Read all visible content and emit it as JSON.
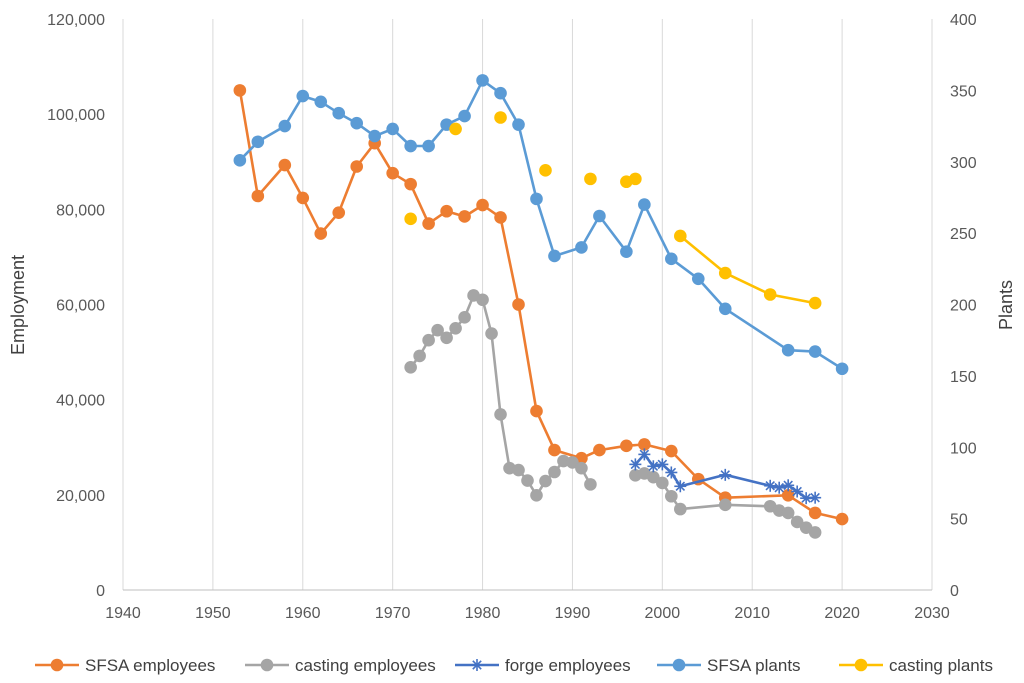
{
  "chart_data": {
    "type": "line",
    "xlabel": "",
    "ylabel": "Employment",
    "y2label": "Plants",
    "xlim": [
      1940,
      2030
    ],
    "ylim": [
      0,
      120000
    ],
    "y2lim": [
      0,
      400
    ],
    "x_ticks": [
      "1940",
      "1950",
      "1960",
      "1970",
      "1980",
      "1990",
      "2000",
      "2010",
      "2020",
      "2030"
    ],
    "y_ticks": [
      "0",
      "20,000",
      "40,000",
      "60,000",
      "80,000",
      "100,000",
      "120,000"
    ],
    "y2_ticks": [
      "0",
      "50",
      "100",
      "150",
      "200",
      "250",
      "300",
      "350",
      "400"
    ],
    "grid": "vertical",
    "legend_position": "bottom",
    "series": [
      {
        "name": "SFSA employees",
        "axis": "left",
        "color": "#ED7D31",
        "marker": "circle",
        "line": true,
        "points": [
          [
            1953,
            105000
          ],
          [
            1955,
            82800
          ],
          [
            1958,
            89300
          ],
          [
            1960,
            82400
          ],
          [
            1962,
            74900
          ],
          [
            1964,
            79300
          ],
          [
            1966,
            89000
          ],
          [
            1968,
            93900
          ],
          [
            1970,
            87600
          ],
          [
            1972,
            85300
          ],
          [
            1974,
            77000
          ],
          [
            1976,
            79600
          ],
          [
            1978,
            78500
          ],
          [
            1980,
            80900
          ],
          [
            1982,
            78300
          ],
          [
            1984,
            60000
          ],
          [
            1986,
            37600
          ],
          [
            1988,
            29400
          ],
          [
            1991,
            27700
          ],
          [
            1993,
            29400
          ],
          [
            1996,
            30300
          ],
          [
            1998,
            30600
          ],
          [
            2001,
            29200
          ],
          [
            2004,
            23300
          ],
          [
            2007,
            19400
          ],
          [
            2014,
            19900
          ],
          [
            2017,
            16200
          ],
          [
            2020,
            14900
          ]
        ]
      },
      {
        "name": "casting employees",
        "axis": "left",
        "color": "#A5A5A5",
        "marker": "circle",
        "line": true,
        "segments": [
          [
            [
              1972,
              46800
            ],
            [
              1973,
              49200
            ],
            [
              1974,
              52500
            ],
            [
              1975,
              54600
            ],
            [
              1976,
              53000
            ],
            [
              1977,
              55000
            ],
            [
              1978,
              57300
            ],
            [
              1979,
              61900
            ],
            [
              1980,
              61000
            ],
            [
              1981,
              53900
            ],
            [
              1982,
              36900
            ],
            [
              1983,
              25600
            ],
            [
              1984,
              25200
            ],
            [
              1985,
              23000
            ],
            [
              1986,
              19900
            ],
            [
              1987,
              22900
            ],
            [
              1988,
              24800
            ],
            [
              1989,
              27100
            ],
            [
              1990,
              26800
            ],
            [
              1991,
              25600
            ],
            [
              1992,
              22200
            ]
          ],
          [
            [
              1997,
              24100
            ],
            [
              1998,
              24500
            ],
            [
              1999,
              23700
            ],
            [
              2000,
              22500
            ],
            [
              2001,
              19700
            ],
            [
              2002,
              17000
            ],
            [
              2007,
              17900
            ],
            [
              2012,
              17600
            ],
            [
              2013,
              16700
            ],
            [
              2014,
              16200
            ],
            [
              2015,
              14300
            ],
            [
              2016,
              13100
            ],
            [
              2017,
              12100
            ]
          ]
        ]
      },
      {
        "name": "forge employees",
        "axis": "left",
        "color": "#4472C4",
        "marker": "asterisk",
        "line": true,
        "points": [
          [
            1997,
            26400
          ],
          [
            1998,
            28500
          ],
          [
            1999,
            26000
          ],
          [
            2000,
            26400
          ],
          [
            2001,
            24700
          ],
          [
            2002,
            21800
          ],
          [
            2007,
            24200
          ],
          [
            2012,
            21900
          ],
          [
            2013,
            21500
          ],
          [
            2014,
            22000
          ],
          [
            2015,
            20700
          ],
          [
            2016,
            19300
          ],
          [
            2017,
            19400
          ]
        ]
      },
      {
        "name": "SFSA plants",
        "axis": "right",
        "color": "#5B9BD5",
        "marker": "circle",
        "line": true,
        "points": [
          [
            1953,
            301
          ],
          [
            1955,
            314
          ],
          [
            1958,
            325
          ],
          [
            1960,
            346
          ],
          [
            1962,
            342
          ],
          [
            1964,
            334
          ],
          [
            1966,
            327
          ],
          [
            1968,
            318
          ],
          [
            1970,
            323
          ],
          [
            1972,
            311
          ],
          [
            1974,
            311
          ],
          [
            1976,
            326
          ],
          [
            1978,
            332
          ],
          [
            1980,
            357
          ],
          [
            1982,
            348
          ],
          [
            1984,
            326
          ],
          [
            1986,
            274
          ],
          [
            1988,
            234
          ],
          [
            1991,
            240
          ],
          [
            1993,
            262
          ],
          [
            1996,
            237
          ],
          [
            1998,
            270
          ],
          [
            2001,
            232
          ],
          [
            2004,
            218
          ],
          [
            2007,
            197
          ],
          [
            2014,
            168
          ],
          [
            2017,
            167
          ],
          [
            2020,
            155
          ]
        ]
      },
      {
        "name": "casting plants",
        "axis": "right",
        "color": "#FFC000",
        "marker": "circle",
        "line_after_year": 2002,
        "points": [
          [
            1972,
            260
          ],
          [
            1977,
            323
          ],
          [
            1982,
            331
          ],
          [
            1987,
            294
          ],
          [
            1992,
            288
          ],
          [
            1996,
            286
          ],
          [
            1997,
            288
          ],
          [
            2002,
            248
          ],
          [
            2007,
            222
          ],
          [
            2012,
            207
          ],
          [
            2017,
            201
          ]
        ]
      }
    ]
  }
}
